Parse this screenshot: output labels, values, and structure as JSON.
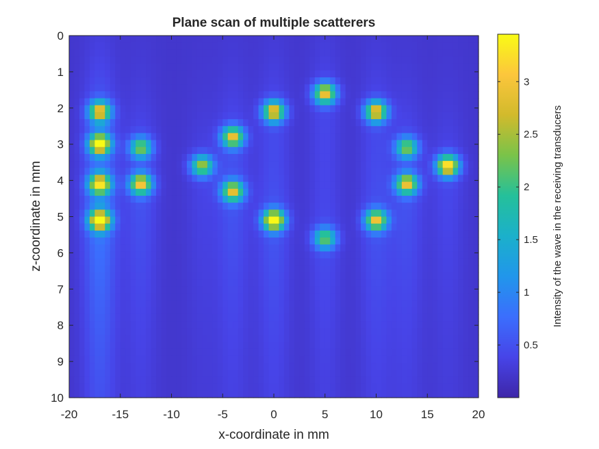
{
  "chart_data": {
    "type": "heatmap",
    "title": "Plane scan of multiple scatterers",
    "xlabel": "x-coordinate in mm",
    "ylabel": "z-coordinate in mm",
    "colorbar_label": "Intensity of the wave in the receiving transducers",
    "xlim": [
      -20,
      20
    ],
    "ylim": [
      0,
      10
    ],
    "y_direction": "reversed",
    "x_ticks": [
      -20,
      -15,
      -10,
      -5,
      0,
      5,
      10,
      15,
      20
    ],
    "x_tick_labels": [
      "-20",
      "-15",
      "-10",
      "-5",
      "0",
      "5",
      "10",
      "15",
      "20"
    ],
    "y_ticks": [
      0,
      1,
      2,
      3,
      4,
      5,
      6,
      7,
      8,
      9,
      10
    ],
    "y_tick_labels": [
      "0",
      "1",
      "2",
      "3",
      "4",
      "5",
      "6",
      "7",
      "8",
      "9",
      "10"
    ],
    "clim": [
      0,
      3.45
    ],
    "colorbar_ticks": [
      0.5,
      1,
      1.5,
      2,
      2.5,
      3
    ],
    "colorbar_tick_labels": [
      "0.5",
      "1",
      "1.5",
      "2",
      "2.5",
      "3"
    ],
    "colormap": "parula",
    "colormap_stops": [
      "#3e26a8",
      "#4744e8",
      "#3b6efd",
      "#2196eb",
      "#1bb0cb",
      "#25c09a",
      "#7ac349",
      "#d2ba2c",
      "#fcc63c",
      "#f9fb15"
    ],
    "background_intensity": 0.22,
    "grid_resolution": {
      "nx": 80,
      "nz": 52
    },
    "scatterers": [
      {
        "x": -17,
        "z": 2.1,
        "intensity": 2.9
      },
      {
        "x": -17,
        "z": 3.0,
        "intensity": 3.3
      },
      {
        "x": -17,
        "z": 4.1,
        "intensity": 3.0
      },
      {
        "x": -17,
        "z": 5.1,
        "intensity": 3.4
      },
      {
        "x": -13,
        "z": 3.1,
        "intensity": 2.3
      },
      {
        "x": -13,
        "z": 4.1,
        "intensity": 3.0
      },
      {
        "x": -7,
        "z": 3.6,
        "intensity": 2.5
      },
      {
        "x": -4,
        "z": 2.8,
        "intensity": 2.9
      },
      {
        "x": -4,
        "z": 4.3,
        "intensity": 2.8
      },
      {
        "x": 0,
        "z": 2.1,
        "intensity": 3.0
      },
      {
        "x": 0,
        "z": 5.1,
        "intensity": 3.4
      },
      {
        "x": 5,
        "z": 1.6,
        "intensity": 3.0
      },
      {
        "x": 5,
        "z": 5.6,
        "intensity": 2.2
      },
      {
        "x": 10,
        "z": 2.1,
        "intensity": 3.0
      },
      {
        "x": 10,
        "z": 5.1,
        "intensity": 2.9
      },
      {
        "x": 13,
        "z": 3.1,
        "intensity": 2.3
      },
      {
        "x": 13,
        "z": 4.1,
        "intensity": 2.9
      },
      {
        "x": 17,
        "z": 3.6,
        "intensity": 3.4
      }
    ]
  }
}
